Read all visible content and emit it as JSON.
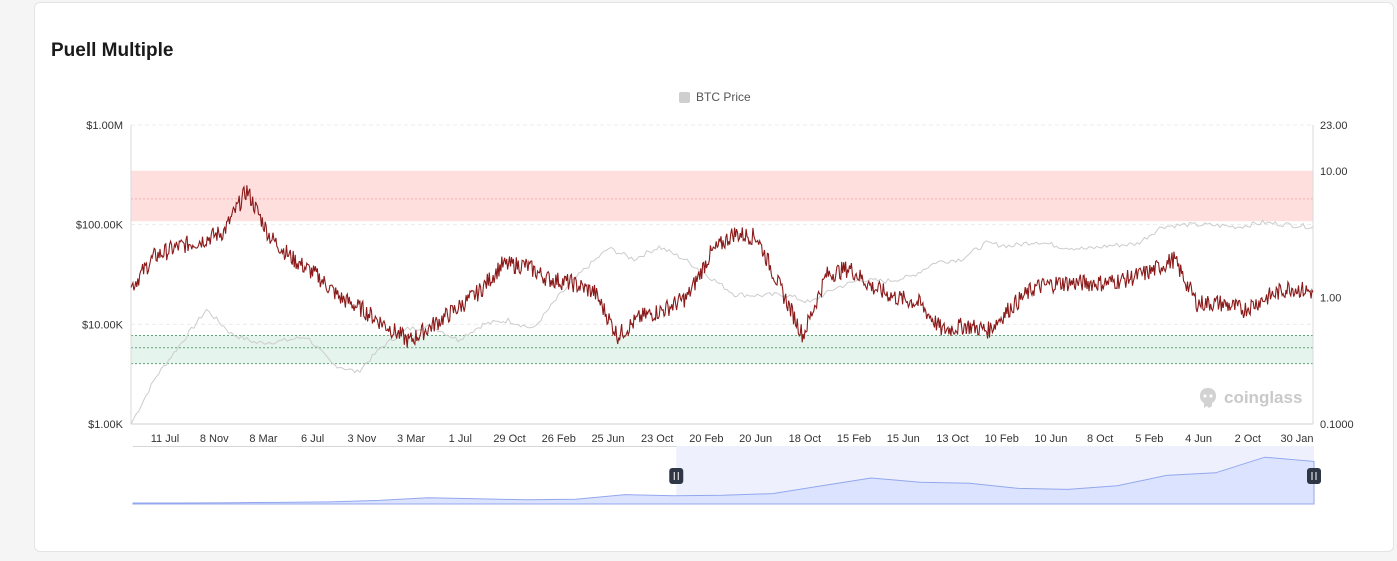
{
  "title": "Puell Multiple",
  "legend": {
    "label": "BTC Price",
    "color": "#cfcfcf"
  },
  "watermark": "coinglass",
  "colors": {
    "puell_line": "#8b1a1a",
    "price_line": "#cccccc",
    "overvalued_band": "#ffdede",
    "undervalued_band": "#e6f4ee",
    "navigator_fill": "#dbe3ff",
    "navigator_line": "#93a7ee",
    "handle": "#2f3747"
  },
  "chart_data": {
    "type": "line",
    "title": "Puell Multiple",
    "left_axis": {
      "scale": "log",
      "range": [
        1000,
        1000000
      ],
      "tick_labels": [
        "$1.00K",
        "$10.00K",
        "$100.00K",
        "$1.00M"
      ]
    },
    "right_axis": {
      "scale": "log",
      "range": [
        0.1,
        23
      ],
      "tick_labels": [
        "0.1000",
        "1.00",
        "10.00",
        "23.00"
      ]
    },
    "x_tick_labels": [
      "11 Jul",
      "8 Nov",
      "8 Mar",
      "6 Jul",
      "3 Nov",
      "3 Mar",
      "1 Jul",
      "29 Oct",
      "26 Feb",
      "25 Jun",
      "23 Oct",
      "20 Feb",
      "20 Jun",
      "18 Oct",
      "15 Feb",
      "15 Jun",
      "13 Oct",
      "10 Feb",
      "10 Jun",
      "8 Oct",
      "5 Feb",
      "4 Jun",
      "2 Oct",
      "30 Jan"
    ],
    "bands": {
      "overvalued": {
        "range": [
          4,
          10
        ],
        "mid": 6
      },
      "undervalued": {
        "range": [
          0.3,
          0.5
        ],
        "mid": 0.4
      }
    },
    "series": [
      {
        "name": "BTC Price",
        "axis": "left",
        "values": [
          1000,
          3000,
          6500,
          14000,
          8000,
          6500,
          6800,
          7500,
          4000,
          3300,
          6000,
          9000,
          9500,
          7000,
          10000,
          11000,
          9000,
          19000,
          35000,
          58000,
          45000,
          60000,
          45000,
          30000,
          20000,
          19500,
          20000,
          16500,
          23000,
          28000,
          27000,
          30000,
          42000,
          45000,
          65000,
          61000,
          68000,
          60000,
          57000,
          62000,
          64000,
          96000,
          100000,
          99000,
          95000,
          105000,
          100000,
          95000
        ]
      },
      {
        "name": "Puell Multiple",
        "axis": "right",
        "values": [
          1.2,
          2.1,
          2.5,
          2.8,
          3.3,
          7.0,
          3.0,
          2.0,
          1.5,
          1.0,
          0.8,
          0.6,
          0.45,
          0.6,
          0.8,
          1.1,
          1.8,
          1.8,
          1.4,
          1.3,
          1.1,
          0.5,
          0.7,
          0.8,
          1.0,
          2.2,
          3.2,
          3.0,
          1.2,
          0.5,
          1.5,
          1.7,
          1.2,
          1.0,
          0.9,
          0.55,
          0.6,
          0.55,
          0.85,
          1.2,
          1.3,
          1.3,
          1.3,
          1.4,
          1.6,
          2.0,
          0.9,
          0.9,
          0.8,
          1.0,
          1.2,
          1.1
        ]
      }
    ],
    "navigator": {
      "selection": [
        0.46,
        1.0
      ],
      "values": [
        0.02,
        0.02,
        0.025,
        0.03,
        0.04,
        0.07,
        0.12,
        0.1,
        0.08,
        0.09,
        0.18,
        0.16,
        0.17,
        0.2,
        0.35,
        0.5,
        0.42,
        0.4,
        0.3,
        0.28,
        0.35,
        0.55,
        0.6,
        0.9,
        0.82
      ]
    }
  }
}
